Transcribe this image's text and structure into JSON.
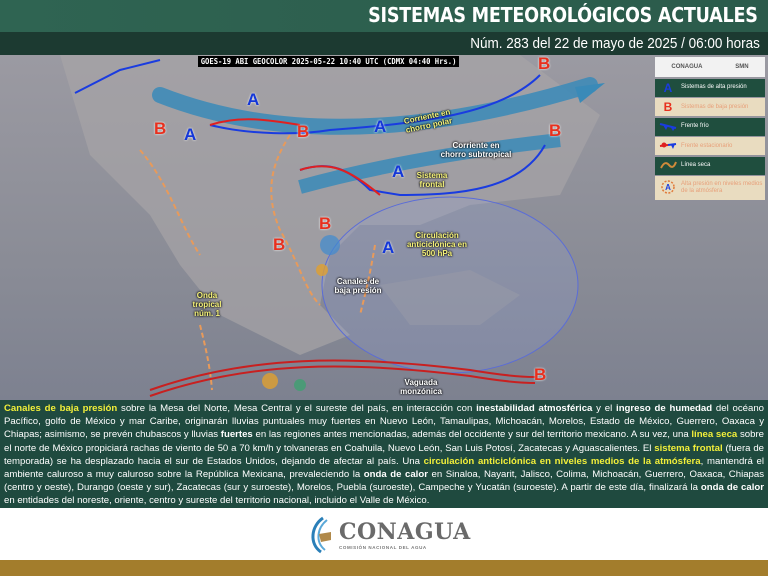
{
  "header": {
    "title": "SISTEMAS METEOROLÓGICOS ACTUALES",
    "subtitle": "Núm. 283 del 22 de mayo de 2025 / 06:00 horas"
  },
  "map": {
    "satellite_caption": "GOES-19 ABI GEOCOLOR 2025-05-22 10:40 UTC (CDMX  04:40 Hrs.)",
    "high_symbol": "A",
    "low_symbol": "B",
    "labels": {
      "polar_jet": "Corriente en chorro polar",
      "subtropical_jet": "Corriente en chorro subtropical",
      "frontal_system": "Sistema frontal",
      "anticyclone": "Circulación anticiclónica en 500 hPa",
      "low_channels": "Canales de baja presión",
      "tropical_wave": "Onda tropical núm. 1",
      "monsoon_trough": "Vaguada monzónica"
    },
    "colors": {
      "high": "#1437d8",
      "low": "#e8301e",
      "jet": "#3a8ab8",
      "cold_front": "#1a3ce0",
      "warm_front": "#e02020",
      "dry_line": "#e89a5a"
    }
  },
  "legend": {
    "logos": [
      "CONAGUA",
      "SMN"
    ],
    "items": [
      {
        "icon": "A",
        "label": "Sistemas de alta presión"
      },
      {
        "icon": "B",
        "label": "Sistemas de baja presión"
      },
      {
        "icon": "cold-front",
        "label": "Frente frío"
      },
      {
        "icon": "stationary-front",
        "label": "Frente estacionario"
      },
      {
        "icon": "dry-line",
        "label": "Línea seca"
      },
      {
        "icon": "mid-level-high",
        "label": "Alta presión en niveles medios de la atmósfera"
      }
    ]
  },
  "paragraph": {
    "segments": [
      {
        "style": "y",
        "text": "Canales de baja presión"
      },
      {
        "style": "n",
        "text": " sobre la Mesa del Norte, Mesa Central y el sureste del país, en interacción con "
      },
      {
        "style": "b",
        "text": "inestabilidad atmosférica"
      },
      {
        "style": "n",
        "text": " y el "
      },
      {
        "style": "b",
        "text": "ingreso de humedad"
      },
      {
        "style": "n",
        "text": " del océano Pacífico, golfo de México y mar Caribe, originarán lluvias puntuales muy fuertes en Nuevo León, Tamaulipas, Michoacán, Morelos, Estado de México, Guerrero, Oaxaca y Chiapas; asimismo, se prevén chubascos y lluvias "
      },
      {
        "style": "b",
        "text": "fuertes"
      },
      {
        "style": "n",
        "text": " en las regiones antes mencionadas, además del occidente y sur del territorio mexicano. A su vez, una "
      },
      {
        "style": "y",
        "text": "línea seca"
      },
      {
        "style": "n",
        "text": " sobre el norte de México propiciará rachas de viento de 50 a 70 km/h y tolvaneras en Coahuila, Nuevo León, San Luis Potosí, Zacatecas y Aguascalientes. El "
      },
      {
        "style": "y",
        "text": "sistema frontal"
      },
      {
        "style": "n",
        "text": " (fuera de temporada) se ha desplazado hacia el sur de Estados Unidos, dejando de afectar al país. Una "
      },
      {
        "style": "y",
        "text": "circulación anticiclónica en niveles medios de la atmósfera"
      },
      {
        "style": "n",
        "text": ", mantendrá el ambiente caluroso a muy caluroso sobre la República Mexicana, prevaleciendo la "
      },
      {
        "style": "b",
        "text": "onda de calor"
      },
      {
        "style": "n",
        "text": " en Sinaloa, Nayarit, Jalisco, Colima, Michoacán, Guerrero, Oaxaca, Chiapas (centro y oeste), Durango (oeste y sur), Zacatecas (sur y suroeste), Morelos, Puebla (suroeste), Campeche y Yucatán (suroeste). A partir de este día, finalizará la "
      },
      {
        "style": "b",
        "text": "onda de calor"
      },
      {
        "style": "n",
        "text": " en entidades del noreste, oriente, centro y sureste del territorio nacional, incluido el Valle de México."
      }
    ]
  },
  "footer": {
    "logo_name": "CONAGUA",
    "logo_subtitle": "COMISIÓN NACIONAL DEL AGUA"
  }
}
